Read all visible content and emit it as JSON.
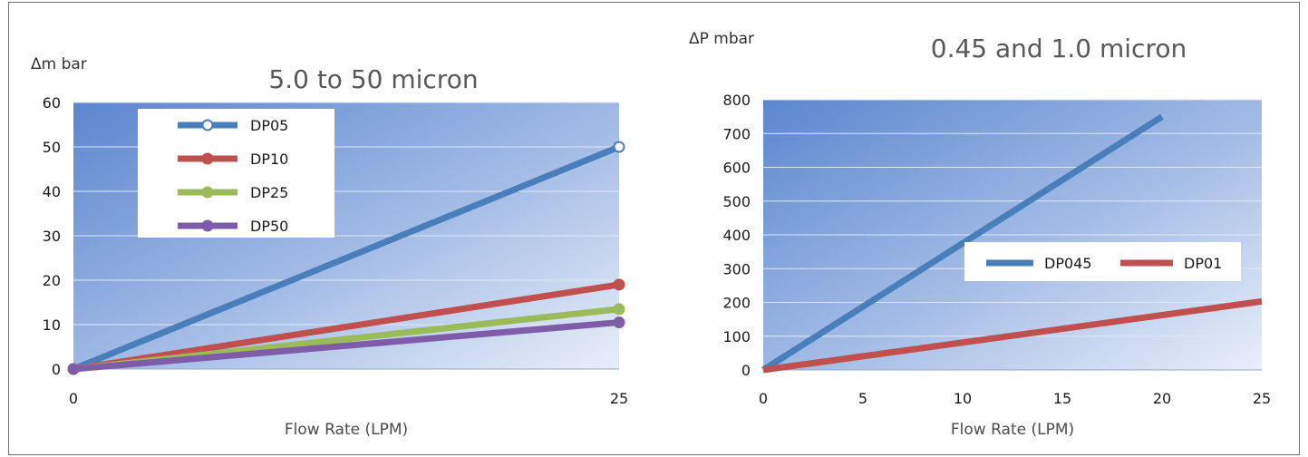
{
  "chart_data": [
    {
      "type": "line",
      "title": "5.0 to 50 micron",
      "ylabel": "Δm bar",
      "xlabel": "Flow Rate (LPM)",
      "xlim": [
        0,
        25
      ],
      "ylim": [
        0,
        60
      ],
      "x_ticks": [
        "0",
        "25"
      ],
      "y_ticks": [
        "0",
        "10",
        "20",
        "30",
        "40",
        "50",
        "60"
      ],
      "grid": true,
      "legend_position": "top-left",
      "series": [
        {
          "name": "DP05",
          "color": "#4a7ebb",
          "points": [
            [
              0,
              0
            ],
            [
              25,
              50
            ]
          ]
        },
        {
          "name": "DP10",
          "color": "#c0504d",
          "points": [
            [
              0,
              0
            ],
            [
              25,
              19
            ]
          ]
        },
        {
          "name": "DP25",
          "color": "#9bbb59",
          "points": [
            [
              0,
              0
            ],
            [
              25,
              13.5
            ]
          ]
        },
        {
          "name": "DP50",
          "color": "#7f5ca8",
          "points": [
            [
              0,
              0
            ],
            [
              25,
              10.5
            ]
          ]
        }
      ]
    },
    {
      "type": "line",
      "title": "0.45 and 1.0 micron",
      "ylabel": "ΔP mbar",
      "xlabel": "Flow Rate (LPM)",
      "xlim": [
        0,
        25
      ],
      "ylim": [
        0,
        800
      ],
      "x_ticks": [
        "0",
        "5",
        "10",
        "15",
        "20",
        "25"
      ],
      "y_ticks": [
        "0",
        "100",
        "200",
        "300",
        "400",
        "500",
        "600",
        "700",
        "800"
      ],
      "grid": true,
      "legend_position": "middle-right",
      "series": [
        {
          "name": "DP045",
          "color": "#4a7ebb",
          "points": [
            [
              0,
              0
            ],
            [
              20,
              750
            ]
          ]
        },
        {
          "name": "DP01",
          "color": "#c0504d",
          "points": [
            [
              0,
              0
            ],
            [
              25,
              203
            ]
          ]
        }
      ]
    }
  ]
}
